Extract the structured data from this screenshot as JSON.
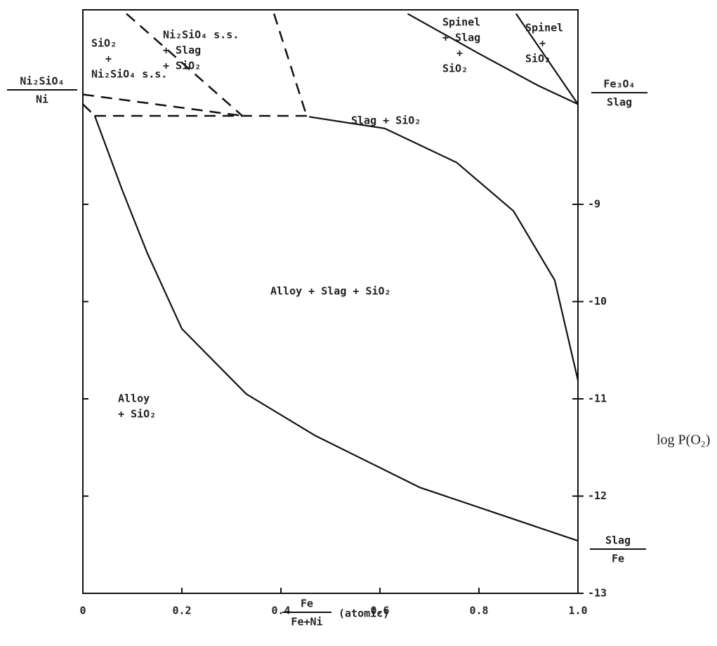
{
  "chart_data": {
    "type": "line",
    "xlim": [
      0,
      1
    ],
    "xticks": [
      0,
      0.2,
      0.4,
      0.6,
      0.8,
      {
        "value": 1,
        "label": "1.0"
      }
    ],
    "ylim": [
      -13,
      -7
    ],
    "yticks": [
      -13,
      -12,
      -11,
      -10,
      -9
    ],
    "ylabel": "log P(O₂)",
    "xlabel": {
      "numerator": "Fe",
      "denominator": "Fe+Ni",
      "unit": "(atomic)"
    },
    "series": [
      {
        "color": "#111",
        "dashed": false,
        "x": [
          0.024,
          0.08,
          0.13,
          0.2,
          0.33,
          0.47,
          0.68,
          1.0
        ],
        "values": [
          -8.09,
          -8.86,
          -9.5,
          -10.28,
          -10.95,
          -11.38,
          -11.91,
          -12.46
        ]
      },
      {
        "color": "#111",
        "dashed": false,
        "x": [
          0.457,
          0.61,
          0.755,
          0.87,
          0.953,
          1.0
        ],
        "values": [
          -8.1,
          -8.22,
          -8.57,
          -9.07,
          -9.78,
          -10.81
        ]
      },
      {
        "color": "#111",
        "dashed": false,
        "x": [
          0.656,
          0.8,
          0.92,
          1.0
        ],
        "values": [
          -7.04,
          -7.45,
          -7.78,
          -7.97
        ]
      },
      {
        "color": "#111",
        "dashed": false,
        "x": [
          0.875,
          1.0
        ],
        "values": [
          -7.04,
          -7.97
        ]
      },
      {
        "color": "#111",
        "dashed": true,
        "x": [
          0.024,
          0.457
        ],
        "values": [
          -8.09,
          -8.09
        ]
      },
      {
        "color": "#111",
        "dashed": true,
        "x": [
          0,
          0.322
        ],
        "values": [
          -7.87,
          -8.09
        ]
      },
      {
        "color": "#111",
        "dashed": true,
        "x": [
          0.088,
          0.322
        ],
        "values": [
          -7.04,
          -8.09
        ]
      },
      {
        "color": "#111",
        "dashed": true,
        "x": [
          0.386,
          0.452
        ],
        "values": [
          -7.04,
          -8.09
        ]
      },
      {
        "color": "#111",
        "dashed": true,
        "x": [
          0,
          0.024
        ],
        "values": [
          -7.97,
          -8.09
        ]
      }
    ],
    "annotations": [
      [
        "SiO₂",
        "+",
        "Ni₂SiO₄ s.s."
      ],
      [
        "Ni₂SiO₄ s.s.",
        "+ Slag",
        "+ SiO₂"
      ],
      [
        "Spinel",
        "+ Slag",
        "+",
        "SiO₂"
      ],
      [
        "Spinel",
        "+",
        "SiO₂"
      ],
      [
        "Slag + SiO₂"
      ],
      [
        "Alloy + Slag + SiO₂"
      ],
      [
        "Alloy",
        "+ SiO₂"
      ]
    ],
    "boundary_labels": [
      {
        "numerator": "Ni₂SiO₄",
        "denominator": "Ni"
      },
      {
        "numerator": "Fe₃O₄",
        "denominator": "Slag"
      },
      {
        "numerator": "Slag",
        "denominator": "Fe"
      }
    ]
  }
}
